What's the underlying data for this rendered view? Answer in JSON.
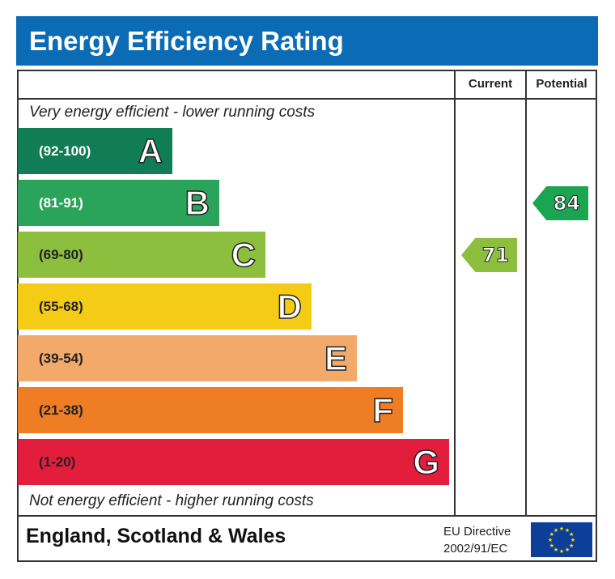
{
  "title": "Energy Efficiency Rating",
  "columns": {
    "current": "Current",
    "potential": "Potential"
  },
  "top_note": "Very energy efficient - lower running costs",
  "bottom_note": "Not energy efficient - higher running costs",
  "footer": {
    "region": "England, Scotland & Wales",
    "directive_line1": "EU Directive",
    "directive_line2": "2002/91/EC",
    "flag_icon": "eu-flag-icon"
  },
  "chart_data": {
    "type": "bar",
    "title": "Energy Efficiency Rating",
    "bands": [
      {
        "letter": "A",
        "range": "(92-100)",
        "color": "#107d57",
        "text_color": "#ffffff"
      },
      {
        "letter": "B",
        "range": "(81-91)",
        "color": "#2aa45b",
        "text_color": "#ffffff"
      },
      {
        "letter": "C",
        "range": "(69-80)",
        "color": "#8dbf3f",
        "text_color": "#222222"
      },
      {
        "letter": "D",
        "range": "(55-68)",
        "color": "#f5cc15",
        "text_color": "#222222"
      },
      {
        "letter": "E",
        "range": "(39-54)",
        "color": "#f2a96a",
        "text_color": "#222222"
      },
      {
        "letter": "F",
        "range": "(21-38)",
        "color": "#ee7d24",
        "text_color": "#222222"
      },
      {
        "letter": "G",
        "range": "(1-20)",
        "color": "#e31d3c",
        "text_color": "#222222"
      }
    ],
    "current": {
      "value": 71,
      "band": "C",
      "color": "#8dbf3f"
    },
    "potential": {
      "value": 84,
      "band": "B",
      "color": "#1ba552"
    }
  }
}
